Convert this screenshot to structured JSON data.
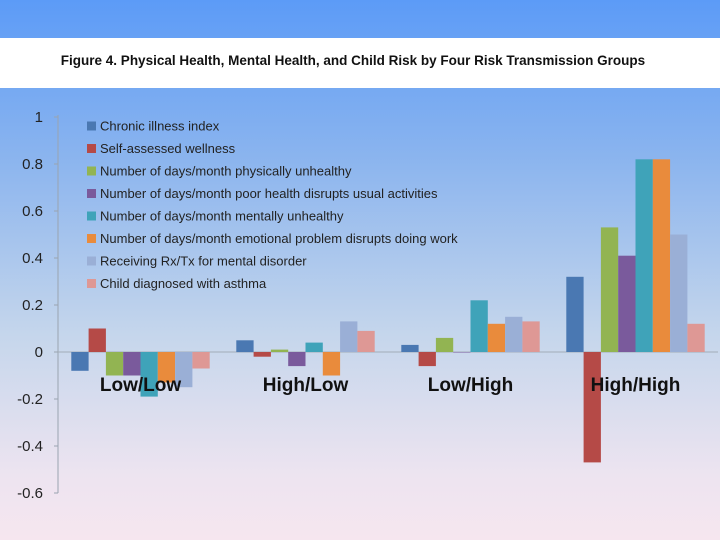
{
  "title": "Figure 4. Physical Health, Mental Health, and Child Risk by Four Risk Transmission Groups",
  "chart_data": {
    "type": "bar",
    "title": "Figure 4. Physical Health, Mental Health, and Child Risk by Four Risk Transmission Groups",
    "xlabel": "",
    "ylabel": "",
    "categories": [
      "Low/Low",
      "High/Low",
      "Low/High",
      "High/High"
    ],
    "ylim": [
      -0.6,
      1
    ],
    "yticks": [
      1,
      0.8,
      0.6,
      0.4,
      0.2,
      0,
      -0.2,
      -0.4,
      -0.6
    ],
    "ytick_labels": [
      "1",
      "0.8",
      "0.6",
      "0.4",
      "0.2",
      "0",
      "-0.2",
      "-0.4",
      "-0.6"
    ],
    "grid": false,
    "legend_position": "top-left",
    "series": [
      {
        "name": "Chronic illness index",
        "color": "#4a78b2",
        "values": [
          -0.08,
          0.05,
          0.03,
          0.32
        ]
      },
      {
        "name": "Self-assessed wellness",
        "color": "#b54a47",
        "values": [
          0.1,
          -0.02,
          -0.06,
          -0.47
        ]
      },
      {
        "name": "Number of days/month physically unhealthy",
        "color": "#92b452",
        "values": [
          -0.1,
          0.01,
          0.06,
          0.53
        ]
      },
      {
        "name": "Number of days/month poor health disrupts usual activities",
        "color": "#7a5a9c",
        "values": [
          -0.1,
          -0.06,
          0,
          0.41
        ]
      },
      {
        "name": "Number of days/month mentally unhealthy",
        "color": "#3fa3b9",
        "values": [
          -0.19,
          0.04,
          0.22,
          0.82
        ]
      },
      {
        "name": "Number of days/month emotional problem disrupts doing work",
        "color": "#e98b3c",
        "values": [
          -0.13,
          -0.1,
          0.12,
          0.82
        ]
      },
      {
        "name": "Receiving Rx/Tx for mental disorder",
        "color": "#9aafd6",
        "values": [
          -0.15,
          0.13,
          0.15,
          0.5
        ]
      },
      {
        "name": "Child diagnosed with asthma",
        "color": "#de9895",
        "values": [
          -0.07,
          0.09,
          0.13,
          0.12
        ]
      }
    ]
  }
}
